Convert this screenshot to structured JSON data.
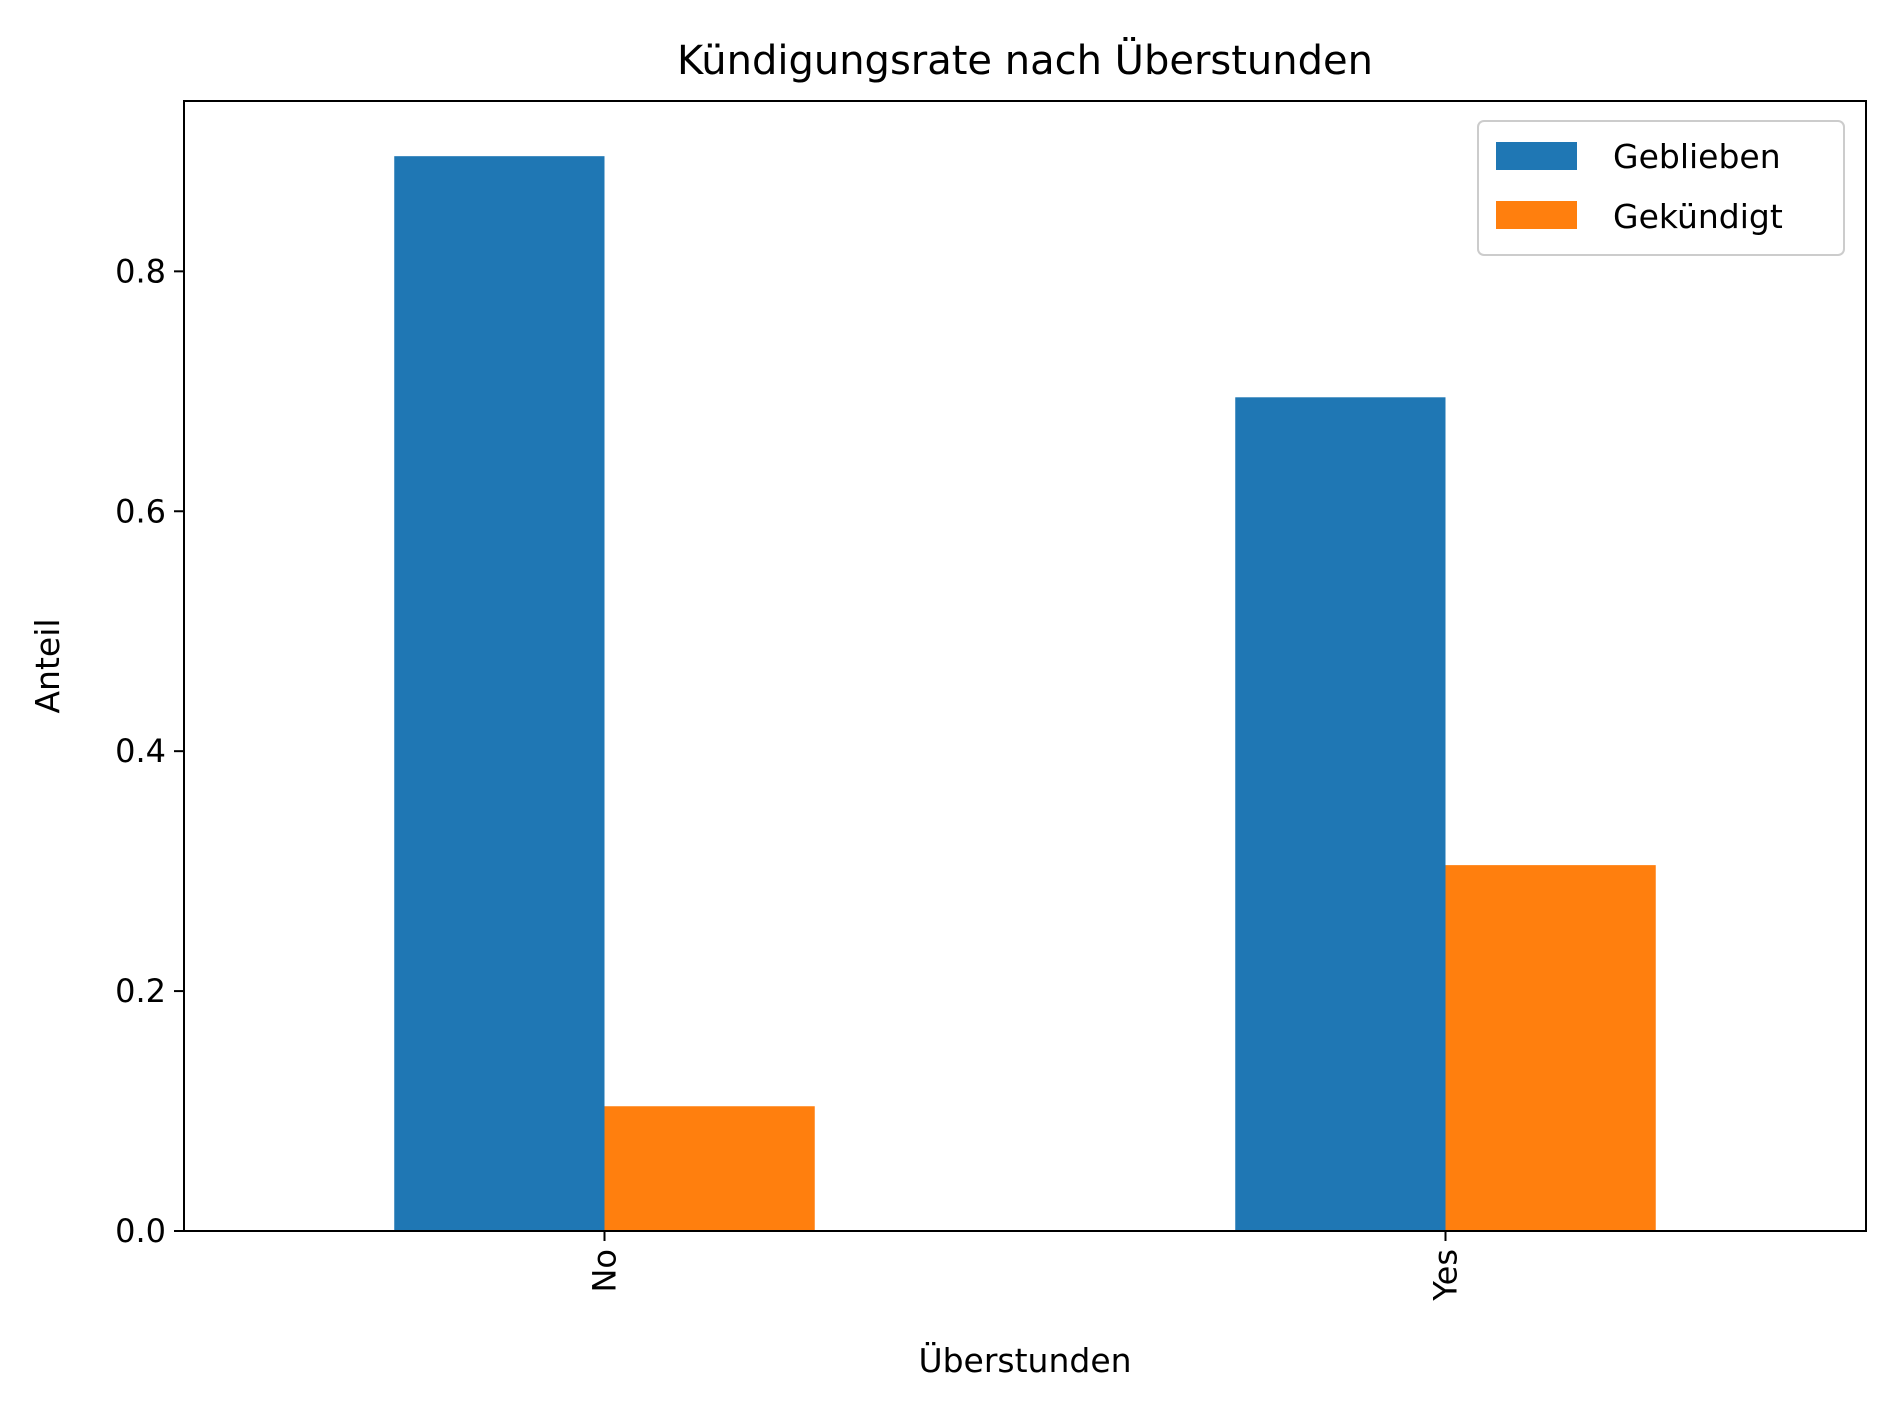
{
  "chart_data": {
    "type": "bar",
    "title": "Kündigungsrate nach Überstunden",
    "xlabel": "Überstunden",
    "ylabel": "Anteil",
    "categories": [
      "No",
      "Yes"
    ],
    "series": [
      {
        "name": "Geblieben",
        "color": "#1f77b4",
        "values": [
          0.896,
          0.695
        ]
      },
      {
        "name": "Gekündigt",
        "color": "#ff7f0e",
        "values": [
          0.104,
          0.305
        ]
      }
    ],
    "ylim": [
      0,
      0.942
    ],
    "yticks": [
      0.0,
      0.2,
      0.4,
      0.6,
      0.8
    ],
    "ytick_labels": [
      "0.0",
      "0.2",
      "0.4",
      "0.6",
      "0.8"
    ],
    "grid": false,
    "legend_position": "top-right"
  }
}
